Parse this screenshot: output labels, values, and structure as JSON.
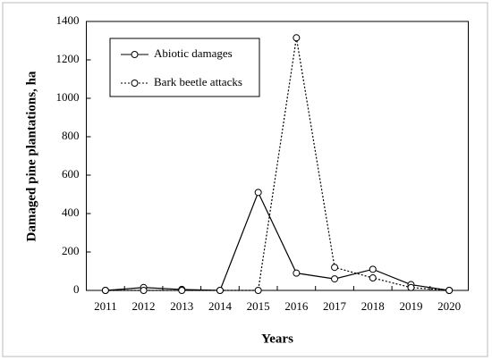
{
  "chart_data": {
    "type": "line",
    "x_label": "Years",
    "y_label": "Damaged pine plantations, ha",
    "categories": [
      "2011",
      "2012",
      "2013",
      "2014",
      "2015",
      "2016",
      "2017",
      "2018",
      "2019",
      "2020"
    ],
    "series": [
      {
        "name": "Abiotic damages",
        "color": "#000000",
        "line_style": "solid",
        "values": [
          0,
          15,
          5,
          0,
          510,
          90,
          60,
          110,
          30,
          0
        ]
      },
      {
        "name": "Bark beetle attacks",
        "color": "#000000",
        "line_style": "dotted",
        "values": [
          0,
          0,
          0,
          0,
          0,
          1315,
          120,
          65,
          15,
          0
        ]
      }
    ],
    "ylim": [
      0,
      1400
    ],
    "yticks": [
      0,
      200,
      400,
      600,
      800,
      1000,
      1200,
      1400
    ],
    "grid": false,
    "legend": "upper left"
  }
}
